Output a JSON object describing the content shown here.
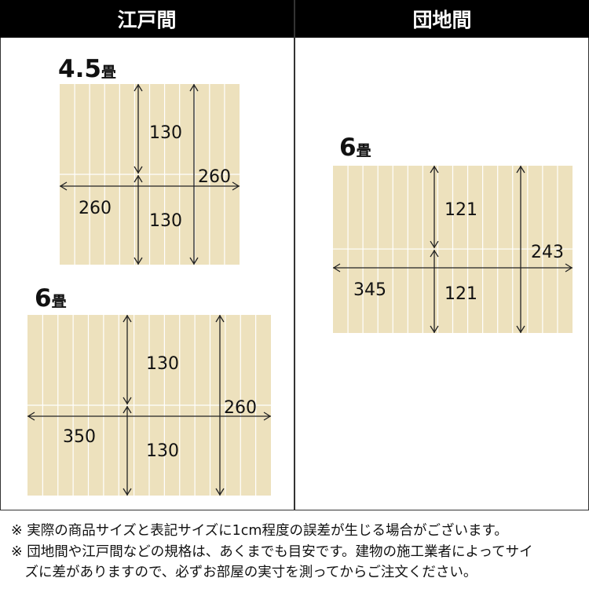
{
  "headers": {
    "edo": "江戸間",
    "danchi": "団地間"
  },
  "colors": {
    "mat": "#ede1bd",
    "header": "#000000",
    "line": "#222222"
  },
  "mats": [
    {
      "id": "edo-4-5",
      "title_num": "4.5",
      "title_unit": "畳",
      "width_cm": 260,
      "depth_cm": 260,
      "half_depth_cm": 130,
      "labels": {
        "width": "260",
        "depth": "260",
        "half_top": "130",
        "half_bottom": "130"
      }
    },
    {
      "id": "edo-6",
      "title_num": "6",
      "title_unit": "畳",
      "width_cm": 350,
      "depth_cm": 260,
      "half_depth_cm": 130,
      "labels": {
        "width": "350",
        "depth": "260",
        "half_top": "130",
        "half_bottom": "130"
      }
    },
    {
      "id": "danchi-6",
      "title_num": "6",
      "title_unit": "畳",
      "width_cm": 345,
      "depth_cm": 243,
      "half_depth_cm": 121,
      "labels": {
        "width": "345",
        "depth": "243",
        "half_top": "121",
        "half_bottom": "121"
      }
    }
  ],
  "notes": [
    "※ 実際の商品サイズと表記サイズに1cm程度の誤差が生じる場合がございます。",
    "※ 団地間や江戸間などの規格は、あくまでも目安です。建物の施工業者によってサイ",
    "　ズに差がありますので、必ずお部屋の実寸を測ってからご注文ください。"
  ]
}
